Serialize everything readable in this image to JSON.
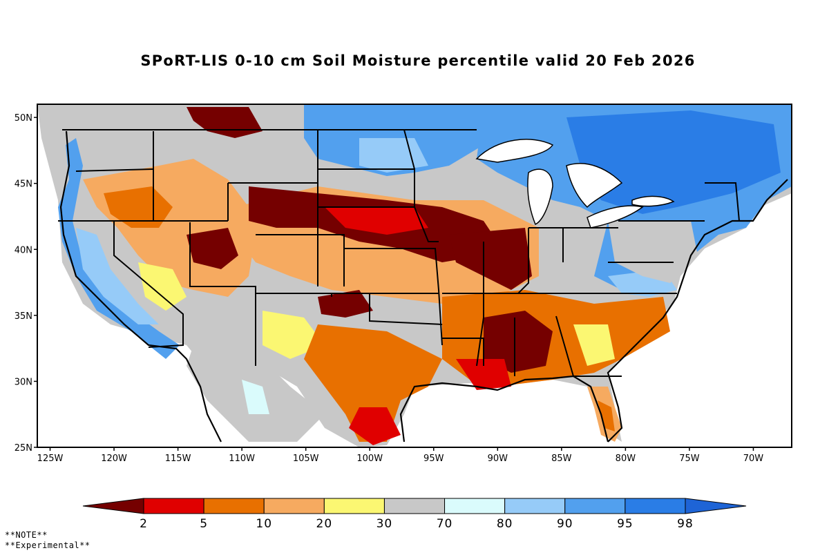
{
  "title": "SPoRT-LIS 0-10 cm Soil Moisture percentile valid 20 Feb 2026",
  "map": {
    "lat_ticks": [
      {
        "value": 50,
        "label": "50N"
      },
      {
        "value": 45,
        "label": "45N"
      },
      {
        "value": 40,
        "label": "40N"
      },
      {
        "value": 35,
        "label": "35N"
      },
      {
        "value": 30,
        "label": "30N"
      },
      {
        "value": 25,
        "label": "25N"
      }
    ],
    "lon_ticks": [
      {
        "value": -125,
        "label": "125W"
      },
      {
        "value": -120,
        "label": "120W"
      },
      {
        "value": -115,
        "label": "115W"
      },
      {
        "value": -110,
        "label": "110W"
      },
      {
        "value": -105,
        "label": "105W"
      },
      {
        "value": -100,
        "label": "100W"
      },
      {
        "value": -95,
        "label": "95W"
      },
      {
        "value": -90,
        "label": "90W"
      },
      {
        "value": -85,
        "label": "85W"
      },
      {
        "value": -80,
        "label": "80W"
      },
      {
        "value": -75,
        "label": "75W"
      },
      {
        "value": -70,
        "label": "70W"
      }
    ],
    "lon_range": [
      -126,
      -67
    ],
    "lat_range": [
      25,
      51
    ],
    "regions": [
      {
        "name": "Central Plains / Upper Midwest",
        "percentile_class": "<2",
        "color": "#7a0000"
      },
      {
        "name": "Lower Mississippi / Deep South",
        "percentile_class": "<2",
        "color": "#7a0000"
      },
      {
        "name": "Great Basin / Four Corners",
        "percentile_class": "5-20",
        "color": "#f2a060"
      },
      {
        "name": "Southern Plains",
        "percentile_class": "30-70",
        "color": "#c8c8c8"
      },
      {
        "name": "Great Lakes / Northeast",
        "percentile_class": "90-98",
        "color": "#4aa0ee"
      },
      {
        "name": "California / Pacific NW coast",
        "percentile_class": "90-98",
        "color": "#4aa0ee"
      }
    ]
  },
  "legend": {
    "classes": [
      {
        "color": "#750000",
        "label": "2"
      },
      {
        "color": "#e00000",
        "label": "5"
      },
      {
        "color": "#e87000",
        "label": "10"
      },
      {
        "color": "#f6aa60",
        "label": "20"
      },
      {
        "color": "#fbf772",
        "label": "30"
      },
      {
        "color": "#c8c8c8",
        "label": "70"
      },
      {
        "color": "#dafbfc",
        "label": "80"
      },
      {
        "color": "#96cbf8",
        "label": "90"
      },
      {
        "color": "#52a0ee",
        "label": "95"
      },
      {
        "color": "#2a7de6",
        "label": "98"
      },
      {
        "color": "#1e64d6",
        "label": ""
      }
    ]
  },
  "notes": {
    "line1": "**NOTE**",
    "line2": "**Experimental**"
  }
}
